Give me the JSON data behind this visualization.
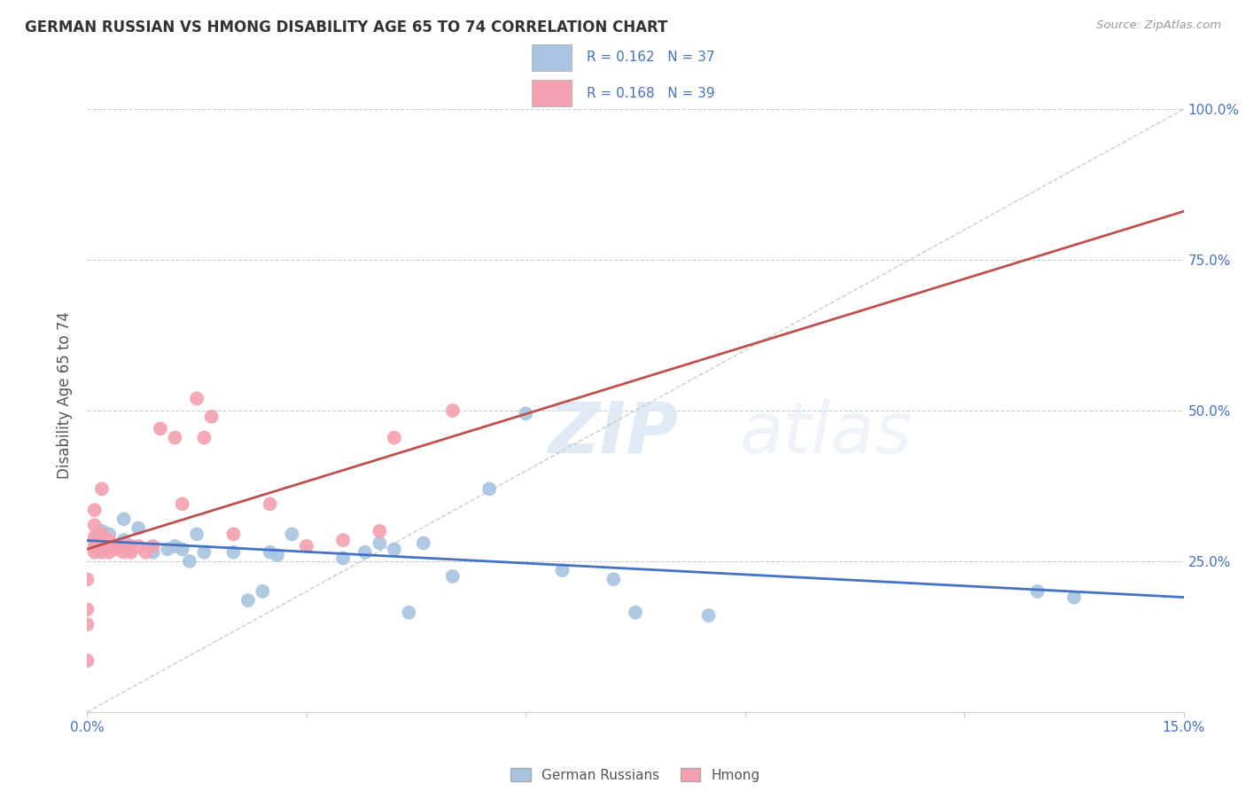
{
  "title": "GERMAN RUSSIAN VS HMONG DISABILITY AGE 65 TO 74 CORRELATION CHART",
  "source": "Source: ZipAtlas.com",
  "ylabel": "Disability Age 65 to 74",
  "legend_label_blue": "German Russians",
  "legend_label_pink": "Hmong",
  "R_blue": "0.162",
  "N_blue": "37",
  "R_pink": "0.168",
  "N_pink": "39",
  "xmin": 0.0,
  "xmax": 0.15,
  "ymin": 0.0,
  "ymax": 1.05,
  "yticks": [
    0.0,
    0.25,
    0.5,
    0.75,
    1.0
  ],
  "ytick_labels": [
    "",
    "25.0%",
    "50.0%",
    "75.0%",
    "100.0%"
  ],
  "xticks": [
    0.0,
    0.03,
    0.06,
    0.09,
    0.12,
    0.15
  ],
  "xtick_labels": [
    "0.0%",
    "",
    "",
    "",
    "",
    "15.0%"
  ],
  "color_blue": "#a8c4e0",
  "color_pink": "#f4a0b0",
  "line_color_blue": "#4472c4",
  "line_color_pink": "#c0504d",
  "diagonal_color": "#cccccc",
  "watermark_zip": "ZIP",
  "watermark_atlas": "atlas",
  "blue_points_x": [
    0.001,
    0.002,
    0.002,
    0.003,
    0.003,
    0.005,
    0.005,
    0.006,
    0.007,
    0.009,
    0.011,
    0.012,
    0.013,
    0.014,
    0.015,
    0.016,
    0.02,
    0.022,
    0.024,
    0.025,
    0.026,
    0.028,
    0.035,
    0.038,
    0.04,
    0.042,
    0.044,
    0.046,
    0.05,
    0.055,
    0.06,
    0.065,
    0.072,
    0.075,
    0.085,
    0.13,
    0.135
  ],
  "blue_points_y": [
    0.285,
    0.3,
    0.27,
    0.275,
    0.295,
    0.285,
    0.32,
    0.275,
    0.305,
    0.265,
    0.27,
    0.275,
    0.27,
    0.25,
    0.295,
    0.265,
    0.265,
    0.185,
    0.2,
    0.265,
    0.26,
    0.295,
    0.255,
    0.265,
    0.28,
    0.27,
    0.165,
    0.28,
    0.225,
    0.37,
    0.495,
    0.235,
    0.22,
    0.165,
    0.16,
    0.2,
    0.19
  ],
  "pink_points_x": [
    0.0,
    0.0,
    0.0,
    0.0,
    0.001,
    0.001,
    0.001,
    0.001,
    0.001,
    0.002,
    0.002,
    0.002,
    0.002,
    0.002,
    0.003,
    0.003,
    0.003,
    0.004,
    0.004,
    0.005,
    0.005,
    0.006,
    0.006,
    0.007,
    0.008,
    0.009,
    0.01,
    0.012,
    0.013,
    0.015,
    0.016,
    0.017,
    0.02,
    0.025,
    0.03,
    0.035,
    0.04,
    0.042,
    0.05
  ],
  "pink_points_y": [
    0.085,
    0.145,
    0.17,
    0.22,
    0.265,
    0.275,
    0.29,
    0.31,
    0.335,
    0.265,
    0.275,
    0.29,
    0.295,
    0.37,
    0.265,
    0.275,
    0.285,
    0.27,
    0.275,
    0.265,
    0.275,
    0.265,
    0.275,
    0.275,
    0.265,
    0.275,
    0.47,
    0.455,
    0.345,
    0.52,
    0.455,
    0.49,
    0.295,
    0.345,
    0.275,
    0.285,
    0.3,
    0.455,
    0.5
  ]
}
